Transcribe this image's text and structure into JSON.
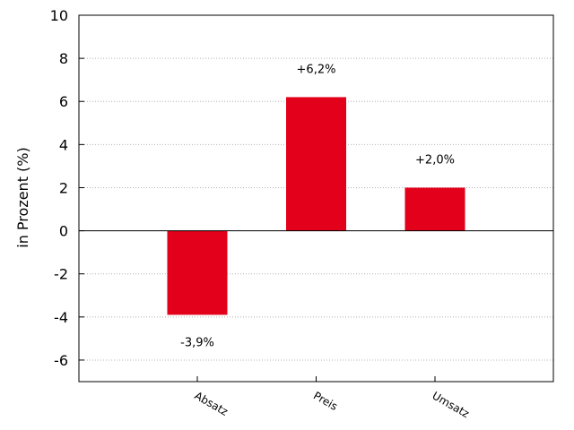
{
  "chart_data": {
    "type": "bar",
    "categories": [
      "Absatz",
      "Preis",
      "Umsatz"
    ],
    "values": [
      -3.9,
      6.2,
      2.0
    ],
    "value_labels": [
      "-3,9%",
      "+6,2%",
      "+2,0%"
    ],
    "ylabel": "in Prozent (%)",
    "xlabel": "",
    "ylim": [
      -7,
      10
    ],
    "yticks": [
      -6,
      -4,
      -2,
      0,
      2,
      4,
      6,
      8,
      10
    ],
    "grid": "horizontal-dotted",
    "bar_color": "#e2001a"
  }
}
